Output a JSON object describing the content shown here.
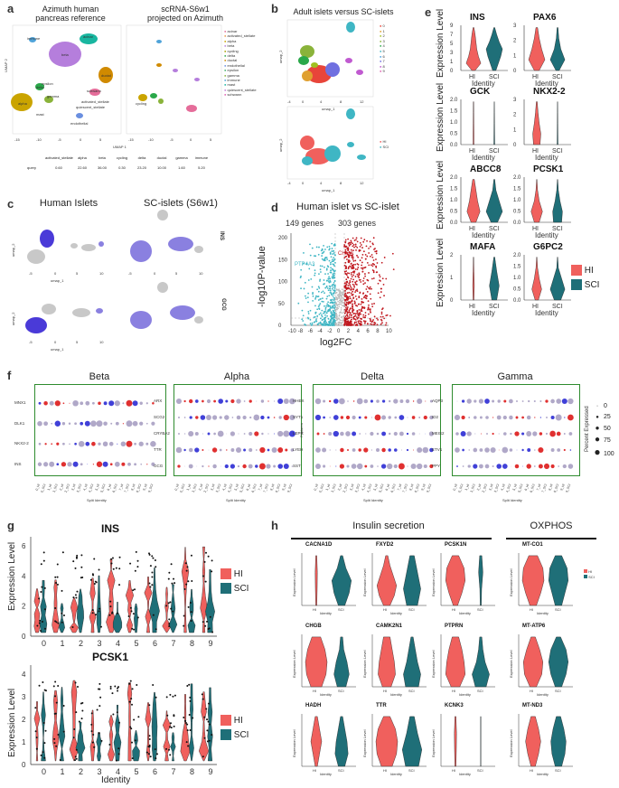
{
  "colors": {
    "hi": "#f0605d",
    "sci": "#1f6f78",
    "teal": "#3fb6c4",
    "red": "#c0181f",
    "green": "#2e8b2e",
    "blue": "#4040e0",
    "purple": "#9a8ad8"
  },
  "panel_a": {
    "label": "a",
    "title_left": "Azimuth human\npancreas reference",
    "title_right": "scRNA-S6w1\nprojected on Azimuth",
    "xlab": "UMAP 1",
    "ylab": "UMAP 2",
    "clusters": [
      "alpha",
      "beta",
      "delta",
      "gamma",
      "acinar",
      "ductal",
      "epsilon",
      "activated_stellate",
      "quiescent_stellate",
      "schwann",
      "immune",
      "endothelial",
      "cycling",
      "mast"
    ],
    "legend": [
      "acinar",
      "activated_stellate",
      "alpha",
      "beta",
      "cycling",
      "delta",
      "ductal",
      "endothelial",
      "epsilon",
      "gamma",
      "immune",
      "mast",
      "quiescent_stellate",
      "schwann"
    ],
    "table_head": [
      "activated_stellate",
      "alpha",
      "beta",
      "cycling",
      "delta",
      "ductal",
      "gamma",
      "immune"
    ],
    "table_row_label": "query",
    "table_vals": [
      "0.60",
      "22.60",
      "36.00",
      "0.30",
      "23.20",
      "10.00",
      "1.60",
      "5.20"
    ]
  },
  "panel_b": {
    "label": "b",
    "title": "Adult islets versus SC-islets",
    "xlab": "umap_1",
    "ylab": "umap_2",
    "legend_clusters": [
      "0",
      "1",
      "2",
      "3",
      "4",
      "5",
      "6",
      "7",
      "8",
      "9"
    ],
    "legend_groups": [
      "HI",
      "SCI"
    ]
  },
  "panel_c": {
    "label": "c",
    "title_left": "Human Islets",
    "title_right": "SC-islets (S6w1)",
    "genes": [
      "INS",
      "GCG"
    ],
    "xlab": "umap_1",
    "ylab": "umap_2"
  },
  "panel_d": {
    "label": "d",
    "title": "Human islet vs SC-islet",
    "left_count": "149 genes",
    "right_count": "303 genes",
    "xlab": "log2FC",
    "ylab": "-log10P-value",
    "gene_left": "PTP4A3",
    "gene_right": "CHGA",
    "xticks": [
      "-10",
      "-8",
      "-6",
      "-4",
      "-2",
      "0",
      "2",
      "4",
      "6",
      "8",
      "10"
    ],
    "yticks": [
      "0",
      "50",
      "100",
      "150",
      "200"
    ]
  },
  "panel_e": {
    "label": "e",
    "genes": [
      "INS",
      "PAX6",
      "GCK",
      "NKX2-2",
      "ABCC8",
      "PCSK1",
      "MAFA",
      "G6PC2"
    ],
    "xlab": "Identity",
    "ylab": "Expression Level",
    "groups": [
      "HI",
      "SCI"
    ],
    "yticks": [
      [
        "0",
        "1",
        "3",
        "5",
        "7",
        "9"
      ],
      [
        "0",
        "1",
        "2",
        "3"
      ],
      [
        "0.0",
        "0.5",
        "1.0",
        "1.5",
        "2.0"
      ],
      [
        "0",
        "1",
        "2",
        "3"
      ],
      [
        "0.0",
        "0.5",
        "1.0",
        "1.5",
        "2.0"
      ],
      [
        "0.0",
        "0.5",
        "1.0",
        "1.5",
        "2.0"
      ],
      [
        "0",
        "1",
        "2"
      ],
      [
        "0.0",
        "0.5",
        "1.0",
        "1.5",
        "2.0"
      ]
    ]
  },
  "panel_f": {
    "label": "f",
    "groups": [
      "Beta",
      "Alpha",
      "Delta",
      "Gamma"
    ],
    "features": [
      [
        "INS",
        "NKX2-2",
        "DLK1",
        "MNX1"
      ],
      [
        "GCG",
        "TTR",
        "CRYBA2",
        "SCG2",
        "ARX"
      ],
      [
        "SST",
        "LYEH",
        "LEPR",
        "SYT1",
        "HHEX"
      ],
      [
        "PPY",
        "ETV1",
        "MEIS2",
        "ID2",
        "AQP3"
      ]
    ],
    "xlab": "Split Identity",
    "ylab": "Features",
    "size_legend_title": "Percent Expressed",
    "size_legend": [
      "0",
      "25",
      "50",
      "75",
      "100"
    ]
  },
  "panel_g": {
    "label": "g",
    "genes": [
      "INS",
      "PCSK1"
    ],
    "xlab": "Identity",
    "ylab": "Expression Level",
    "categories": [
      "0",
      "1",
      "2",
      "3",
      "4",
      "5",
      "6",
      "7",
      "8",
      "9"
    ],
    "groups": [
      "HI",
      "SCI"
    ],
    "yticks_ins": [
      "0",
      "2",
      "4",
      "6"
    ],
    "yticks_pcsk1": [
      "0",
      "1",
      "2",
      "3",
      "4"
    ]
  },
  "panel_h": {
    "label": "h",
    "section_left": "Insulin secretion",
    "section_right": "OXPHOS",
    "genes": [
      "CACNA1D",
      "FXYD2",
      "PCSK1N",
      "CHGB",
      "CAMK2N1",
      "PTPRN",
      "HADH",
      "TTR",
      "KCNK3",
      "MT-CO1",
      "MT-ATP6",
      "MT-ND3"
    ],
    "xlab": "Identity",
    "ylab": "Expression Level",
    "groups": [
      "HI",
      "SCI"
    ]
  }
}
